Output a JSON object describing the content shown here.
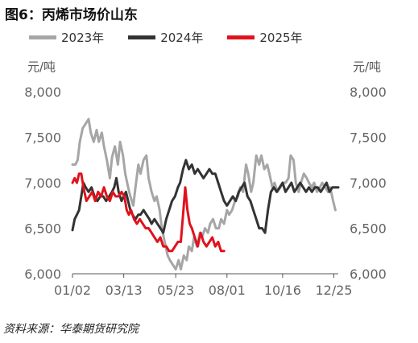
{
  "title": "图6：丙烯市场价山东",
  "source": "资料来源：华泰期货研究院",
  "chart_data": {
    "type": "line",
    "y_unit_left": "元/吨",
    "y_unit_right": "元/吨",
    "ylim": [
      6000,
      8000
    ],
    "yticks": [
      {
        "value": 6000,
        "label": "6,000"
      },
      {
        "value": 6500,
        "label": "6,500"
      },
      {
        "value": 7000,
        "label": "7,000"
      },
      {
        "value": 7500,
        "label": "7,500"
      },
      {
        "value": 8000,
        "label": "8,000"
      }
    ],
    "xlim": [
      "01-02",
      "12-31"
    ],
    "xticks": [
      {
        "value": "01-02",
        "label": "01/02"
      },
      {
        "value": "03-13",
        "label": "03/13"
      },
      {
        "value": "05-23",
        "label": "05/23"
      },
      {
        "value": "08-01",
        "label": "08/01"
      },
      {
        "value": "10-16",
        "label": "10/16"
      },
      {
        "value": "12-25",
        "label": "12/25"
      }
    ],
    "grid": false,
    "legend_position": "top",
    "series": [
      {
        "name": "2023年",
        "color": "#a6a6a6",
        "points": [
          [
            "01-02",
            7200
          ],
          [
            "01-06",
            7200
          ],
          [
            "01-09",
            7250
          ],
          [
            "01-12",
            7450
          ],
          [
            "01-16",
            7600
          ],
          [
            "01-20",
            7650
          ],
          [
            "01-24",
            7700
          ],
          [
            "01-27",
            7550
          ],
          [
            "01-31",
            7450
          ],
          [
            "02-04",
            7580
          ],
          [
            "02-07",
            7450
          ],
          [
            "02-11",
            7550
          ],
          [
            "02-14",
            7400
          ],
          [
            "02-18",
            7250
          ],
          [
            "02-22",
            7050
          ],
          [
            "02-25",
            7280
          ],
          [
            "03-01",
            7400
          ],
          [
            "03-05",
            7200
          ],
          [
            "03-08",
            7450
          ],
          [
            "03-12",
            7300
          ],
          [
            "03-15",
            7100
          ],
          [
            "03-19",
            6950
          ],
          [
            "03-22",
            6850
          ],
          [
            "03-26",
            6750
          ],
          [
            "03-29",
            6950
          ],
          [
            "04-02",
            7200
          ],
          [
            "04-05",
            7100
          ],
          [
            "04-09",
            7250
          ],
          [
            "04-13",
            7300
          ],
          [
            "04-16",
            7050
          ],
          [
            "04-20",
            6900
          ],
          [
            "04-24",
            6800
          ],
          [
            "04-27",
            6850
          ],
          [
            "05-01",
            6700
          ],
          [
            "05-04",
            6500
          ],
          [
            "05-08",
            6350
          ],
          [
            "05-12",
            6200
          ],
          [
            "05-15",
            6150
          ],
          [
            "05-19",
            6100
          ],
          [
            "05-23",
            6050
          ],
          [
            "05-27",
            6150
          ],
          [
            "05-30",
            6050
          ],
          [
            "06-03",
            6200
          ],
          [
            "06-07",
            6150
          ],
          [
            "06-10",
            6300
          ],
          [
            "06-14",
            6250
          ],
          [
            "06-17",
            6400
          ],
          [
            "06-21",
            6300
          ],
          [
            "06-25",
            6450
          ],
          [
            "06-28",
            6400
          ],
          [
            "07-02",
            6500
          ],
          [
            "07-06",
            6450
          ],
          [
            "07-09",
            6550
          ],
          [
            "07-13",
            6600
          ],
          [
            "07-17",
            6500
          ],
          [
            "07-21",
            6500
          ],
          [
            "07-24",
            6600
          ],
          [
            "07-28",
            6550
          ],
          [
            "08-01",
            6700
          ],
          [
            "08-04",
            6650
          ],
          [
            "08-08",
            6700
          ],
          [
            "08-12",
            6800
          ],
          [
            "08-16",
            6850
          ],
          [
            "08-19",
            6950
          ],
          [
            "08-23",
            6900
          ],
          [
            "08-27",
            7200
          ],
          [
            "08-30",
            7100
          ],
          [
            "09-03",
            6900
          ],
          [
            "09-06",
            7000
          ],
          [
            "09-10",
            7300
          ],
          [
            "09-14",
            7200
          ],
          [
            "09-17",
            7300
          ],
          [
            "09-21",
            7150
          ],
          [
            "09-25",
            7200
          ],
          [
            "09-28",
            7100
          ],
          [
            "10-02",
            6950
          ],
          [
            "10-05",
            7000
          ],
          [
            "10-09",
            6900
          ],
          [
            "10-13",
            6950
          ],
          [
            "10-16",
            7000
          ],
          [
            "10-20",
            7000
          ],
          [
            "10-24",
            7050
          ],
          [
            "10-27",
            7300
          ],
          [
            "10-31",
            7250
          ],
          [
            "11-03",
            7000
          ],
          [
            "11-07",
            6900
          ],
          [
            "11-10",
            7000
          ],
          [
            "11-14",
            7100
          ],
          [
            "11-18",
            7050
          ],
          [
            "11-21",
            7000
          ],
          [
            "11-25",
            6950
          ],
          [
            "11-28",
            7000
          ],
          [
            "12-02",
            6900
          ],
          [
            "12-06",
            6950
          ],
          [
            "12-09",
            7000
          ],
          [
            "12-13",
            6950
          ],
          [
            "12-17",
            6900
          ],
          [
            "12-20",
            6950
          ],
          [
            "12-24",
            6800
          ],
          [
            "12-27",
            6700
          ]
        ]
      },
      {
        "name": "2024年",
        "color": "#333333",
        "points": [
          [
            "01-02",
            6480
          ],
          [
            "01-05",
            6600
          ],
          [
            "01-08",
            6650
          ],
          [
            "01-11",
            6700
          ],
          [
            "01-14",
            6850
          ],
          [
            "01-17",
            7000
          ],
          [
            "01-20",
            6950
          ],
          [
            "01-24",
            6900
          ],
          [
            "01-28",
            6950
          ],
          [
            "02-01",
            6850
          ],
          [
            "02-05",
            6800
          ],
          [
            "02-09",
            6850
          ],
          [
            "02-13",
            6850
          ],
          [
            "02-17",
            6800
          ],
          [
            "02-21",
            6850
          ],
          [
            "02-25",
            6900
          ],
          [
            "02-28",
            6950
          ],
          [
            "03-03",
            7050
          ],
          [
            "03-06",
            6900
          ],
          [
            "03-10",
            6800
          ],
          [
            "03-13",
            6850
          ],
          [
            "03-16",
            6900
          ],
          [
            "03-19",
            6800
          ],
          [
            "03-22",
            6700
          ],
          [
            "03-25",
            6650
          ],
          [
            "03-29",
            6600
          ],
          [
            "04-02",
            6650
          ],
          [
            "04-05",
            6650
          ],
          [
            "04-09",
            6700
          ],
          [
            "04-13",
            6650
          ],
          [
            "04-17",
            6600
          ],
          [
            "04-20",
            6550
          ],
          [
            "04-24",
            6600
          ],
          [
            "04-28",
            6550
          ],
          [
            "05-02",
            6500
          ],
          [
            "05-06",
            6450
          ],
          [
            "05-10",
            6600
          ],
          [
            "05-14",
            6700
          ],
          [
            "05-18",
            6800
          ],
          [
            "05-22",
            6850
          ],
          [
            "05-26",
            6950
          ],
          [
            "05-29",
            7000
          ],
          [
            "06-02",
            7150
          ],
          [
            "06-06",
            7250
          ],
          [
            "06-10",
            7150
          ],
          [
            "06-14",
            7200
          ],
          [
            "06-18",
            7100
          ],
          [
            "06-22",
            7150
          ],
          [
            "06-26",
            7100
          ],
          [
            "06-30",
            7050
          ],
          [
            "07-04",
            7100
          ],
          [
            "07-08",
            7150
          ],
          [
            "07-12",
            7100
          ],
          [
            "07-16",
            7100
          ],
          [
            "07-20",
            7000
          ],
          [
            "07-24",
            6900
          ],
          [
            "07-28",
            6800
          ],
          [
            "08-01",
            6750
          ],
          [
            "08-05",
            6800
          ],
          [
            "08-09",
            6850
          ],
          [
            "08-13",
            6800
          ],
          [
            "08-17",
            6900
          ],
          [
            "08-21",
            6950
          ],
          [
            "08-25",
            7000
          ],
          [
            "08-29",
            6850
          ],
          [
            "09-02",
            6800
          ],
          [
            "09-06",
            6700
          ],
          [
            "09-10",
            6600
          ],
          [
            "09-14",
            6500
          ],
          [
            "09-18",
            6500
          ],
          [
            "09-22",
            6450
          ],
          [
            "09-26",
            6700
          ],
          [
            "09-30",
            6900
          ],
          [
            "10-04",
            6950
          ],
          [
            "10-08",
            6900
          ],
          [
            "10-12",
            6950
          ],
          [
            "10-16",
            7000
          ],
          [
            "10-20",
            6900
          ],
          [
            "10-24",
            6950
          ],
          [
            "10-28",
            7000
          ],
          [
            "11-01",
            6900
          ],
          [
            "11-05",
            6950
          ],
          [
            "11-09",
            7000
          ],
          [
            "11-13",
            6950
          ],
          [
            "11-17",
            6900
          ],
          [
            "11-21",
            6950
          ],
          [
            "11-25",
            6900
          ],
          [
            "11-29",
            6950
          ],
          [
            "12-03",
            6950
          ],
          [
            "12-07",
            6900
          ],
          [
            "12-11",
            6950
          ],
          [
            "12-15",
            7000
          ],
          [
            "12-19",
            6900
          ],
          [
            "12-23",
            6950
          ],
          [
            "12-27",
            6950
          ],
          [
            "12-31",
            6950
          ]
        ]
      },
      {
        "name": "2025年",
        "color": "#e0121c",
        "points": [
          [
            "01-02",
            7000
          ],
          [
            "01-05",
            7050
          ],
          [
            "01-08",
            7000
          ],
          [
            "01-11",
            7100
          ],
          [
            "01-14",
            7100
          ],
          [
            "01-17",
            6950
          ],
          [
            "01-21",
            6800
          ],
          [
            "01-25",
            6850
          ],
          [
            "01-29",
            6900
          ],
          [
            "02-02",
            6800
          ],
          [
            "02-06",
            6900
          ],
          [
            "02-10",
            6850
          ],
          [
            "02-14",
            6950
          ],
          [
            "02-18",
            6850
          ],
          [
            "02-22",
            6800
          ],
          [
            "02-26",
            6900
          ],
          [
            "03-02",
            6850
          ],
          [
            "03-06",
            6850
          ],
          [
            "03-10",
            6900
          ],
          [
            "03-14",
            6850
          ],
          [
            "03-17",
            6700
          ],
          [
            "03-20",
            6650
          ],
          [
            "03-23",
            6700
          ],
          [
            "03-27",
            6600
          ],
          [
            "03-31",
            6550
          ],
          [
            "04-04",
            6600
          ],
          [
            "04-08",
            6550
          ],
          [
            "04-12",
            6500
          ],
          [
            "04-16",
            6500
          ],
          [
            "04-20",
            6450
          ],
          [
            "04-24",
            6400
          ],
          [
            "04-28",
            6350
          ],
          [
            "05-02",
            6400
          ],
          [
            "05-06",
            6300
          ],
          [
            "05-10",
            6300
          ],
          [
            "05-14",
            6250
          ],
          [
            "05-18",
            6250
          ],
          [
            "05-22",
            6300
          ],
          [
            "05-26",
            6350
          ],
          [
            "05-30",
            6350
          ],
          [
            "06-02",
            6650
          ],
          [
            "06-05",
            6950
          ],
          [
            "06-08",
            6700
          ],
          [
            "06-11",
            6550
          ],
          [
            "06-14",
            6500
          ],
          [
            "06-18",
            6400
          ],
          [
            "06-22",
            6300
          ],
          [
            "06-26",
            6450
          ],
          [
            "06-30",
            6350
          ],
          [
            "07-04",
            6300
          ],
          [
            "07-08",
            6350
          ],
          [
            "07-12",
            6400
          ],
          [
            "07-16",
            6300
          ],
          [
            "07-20",
            6350
          ],
          [
            "07-24",
            6250
          ],
          [
            "07-28",
            6250
          ]
        ]
      }
    ]
  }
}
